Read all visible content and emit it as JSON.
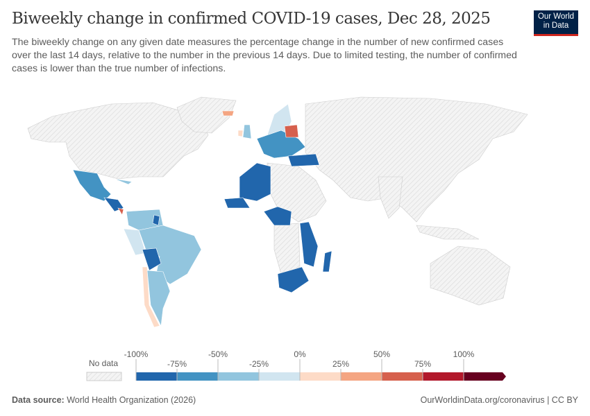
{
  "header": {
    "title": "Biweekly change in confirmed COVID-19 cases, Dec 28, 2025",
    "subtitle": "The biweekly change on any given date measures the percentage change in the number of new confirmed cases over the last 14 days, relative to the number in the previous 14 days. Due to limited testing, the number of confirmed cases is lower than the true number of infections.",
    "logo": [
      "Our World",
      "in Data"
    ]
  },
  "legend": {
    "no_data_label": "No data",
    "ticks_top": [
      "-100%",
      "-50%",
      "0%",
      "50%",
      "100%"
    ],
    "ticks_bottom": [
      "-75%",
      "-25%",
      "25%",
      "75%"
    ],
    "bins": [
      "#2166ac",
      "#4393c3",
      "#92c5de",
      "#d1e5f0",
      "#fddbc7",
      "#f4a582",
      "#d6604d",
      "#b2182b",
      "#67001f"
    ],
    "no_data_color": "#e0e0e0"
  },
  "footer": {
    "source_label": "Data source:",
    "source": "World Health Organization (2026)",
    "url": "OurWorldinData.org/coronavirus | CC BY"
  }
}
